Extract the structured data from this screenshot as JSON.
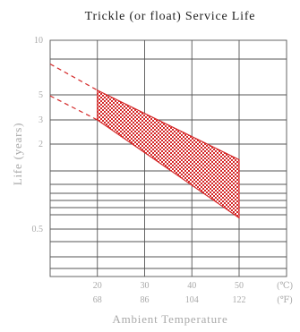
{
  "chart_data": {
    "type": "area",
    "title": "Trickle (or float) Service Life",
    "xlabel": "Ambient Temperature",
    "ylabel": "Life (years)",
    "x_unit_primary": "(℃)",
    "x_unit_secondary": "(℉)",
    "x_ticks": [
      {
        "c": 20,
        "f": 68,
        "label": "20",
        "label_f": "68"
      },
      {
        "c": 30,
        "f": 86,
        "label": "30",
        "label_f": "86"
      },
      {
        "c": 40,
        "f": 104,
        "label": "40",
        "label_f": "104"
      },
      {
        "c": 50,
        "f": 122,
        "label": "50",
        "label_f": "122"
      }
    ],
    "y_ticks": [
      {
        "value": 10,
        "label": "10"
      },
      {
        "value": 5,
        "label": "5"
      },
      {
        "value": 3,
        "label": "3"
      },
      {
        "value": 2,
        "label": "2"
      },
      {
        "value": 0.5,
        "label": "0.5"
      }
    ],
    "xlim": [
      10,
      50
    ],
    "y_scale": "piecewise (as printed)",
    "grid": true,
    "series": [
      {
        "role": "upper",
        "points": [
          [
            20,
            5.3
          ],
          [
            50,
            1.55
          ]
        ],
        "extrapolated_from": [
          [
            10,
            7.4
          ],
          [
            20,
            5.3
          ]
        ]
      },
      {
        "role": "lower",
        "points": [
          [
            20,
            3.0
          ],
          [
            50,
            0.6
          ]
        ],
        "extrapolated_from": [
          [
            10,
            4.9
          ],
          [
            20,
            3.0
          ]
        ]
      }
    ],
    "colors": {
      "band": "#d42828",
      "grid": "#555555",
      "text_muted": "#a9a9a9",
      "title": "#222222"
    }
  }
}
